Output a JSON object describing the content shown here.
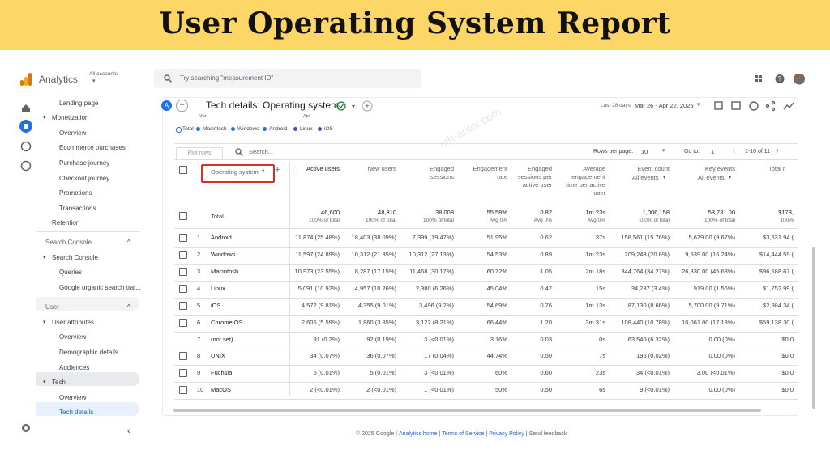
{
  "banner": {
    "title": "User Operating System Report"
  },
  "header": {
    "brand": "Analytics",
    "account": "All accounts",
    "search": "Try searching \"measurement ID\""
  },
  "sidebar": {
    "items": [
      "Landing page",
      "Monetization",
      "Overview",
      "Ecommerce purchases",
      "Purchase journey",
      "Checkout journey",
      "Promotions",
      "Transactions",
      "Retention",
      "Search Console",
      "Search Console",
      "Queries",
      "Google organic search traf...",
      "User",
      "User attributes",
      "Overview",
      "Demographic details",
      "Audiences",
      "Tech",
      "Overview",
      "Tech details"
    ]
  },
  "toolbar": {
    "avatar": "A",
    "title": "Tech details: Operating system",
    "date_label": "Last 28 days",
    "date_range": "Mar 26 - Apr 22, 2025"
  },
  "chart_axis": [
    "Mar",
    "Apr"
  ],
  "legend": [
    "Total",
    "Macintosh",
    "Windows",
    "Android",
    "Linux",
    "iOS"
  ],
  "controls": {
    "plot_rows": "Plot rows",
    "search": "Search...",
    "rows_per_page": "Rows per page:",
    "rows_value": "10",
    "go_to": "Go to:",
    "page": "1",
    "range": "1-10 of 11"
  },
  "watermark": "mh-antor.com",
  "table": {
    "columns": [
      {
        "label": "Operating system"
      },
      {
        "label": "Active users"
      },
      {
        "label": "New users"
      },
      {
        "label": "Engaged sessions"
      },
      {
        "label": "Engagement rate"
      },
      {
        "label": "Engaged sessions per active user"
      },
      {
        "label": "Average engagement time per active user"
      },
      {
        "label": "Event count",
        "sub": "All events"
      },
      {
        "label": "Key events",
        "sub": "All events"
      },
      {
        "label": "Total r"
      }
    ],
    "total": {
      "label": "Total",
      "values": [
        "46,600",
        "48,310",
        "38,008",
        "55.58%",
        "0.82",
        "1m 23s",
        "1,006,158",
        "58,731.00",
        "$178,"
      ],
      "subs": [
        "100% of total",
        "100% of total",
        "100% of total",
        "Avg 0%",
        "Avg 0%",
        "Avg 0%",
        "100% of total",
        "100% of total",
        "100%"
      ]
    },
    "rows": [
      [
        "1",
        "Android",
        "11,874 (25.48%)",
        "18,403 (38.09%)",
        "7,399 (19.47%)",
        "51.95%",
        "0.62",
        "37s",
        "158,561 (15.76%)",
        "5,679.00 (9.67%)",
        "$3,631.94 ("
      ],
      [
        "2",
        "Windows",
        "11,597 (24.89%)",
        "10,312 (21.35%)",
        "10,312 (27.13%)",
        "54.53%",
        "0.89",
        "1m 23s",
        "209,243 (20.8%)",
        "9,539.00 (16.24%)",
        "$14,444.59 ("
      ],
      [
        "3",
        "Macintosh",
        "10,973 (23.55%)",
        "8,287 (17.15%)",
        "11,468 (30.17%)",
        "60.72%",
        "1.05",
        "2m 18s",
        "344,764 (34.27%)",
        "26,830.00 (45.68%)",
        "$96,588.67 ("
      ],
      [
        "4",
        "Linux",
        "5,091 (10.92%)",
        "4,957 (10.26%)",
        "2,380 (6.26%)",
        "45.04%",
        "0.47",
        "15s",
        "34,237 (3.4%)",
        "919.00 (1.56%)",
        "$1,752.99 ("
      ],
      [
        "5",
        "iOS",
        "4,572 (9.81%)",
        "4,355 (9.01%)",
        "3,496 (9.2%)",
        "54.69%",
        "0.76",
        "1m 13s",
        "87,130 (8.66%)",
        "5,700.00 (9.71%)",
        "$2,984.34 ("
      ],
      [
        "6",
        "Chrome OS",
        "2,605 (5.59%)",
        "1,860 (3.85%)",
        "3,122 (8.21%)",
        "66.44%",
        "1.20",
        "3m 31s",
        "108,440 (10.78%)",
        "10,061.00 (17.13%)",
        "$59,138.30 ("
      ],
      [
        "7",
        "(not set)",
        "91 (0.2%)",
        "92 (0.19%)",
        "3 (<0.01%)",
        "3.16%",
        "0.03",
        "0s",
        "63,540 (6.32%)",
        "0.00 (0%)",
        "$0.0"
      ],
      [
        "8",
        "UNIX",
        "34 (0.07%)",
        "36 (0.07%)",
        "17 (0.04%)",
        "44.74%",
        "0.50",
        "7s",
        "196 (0.02%)",
        "0.00 (0%)",
        "$0.0"
      ],
      [
        "9",
        "Fuchsia",
        "5 (0.01%)",
        "5 (0.01%)",
        "3 (<0.01%)",
        "60%",
        "0.60",
        "23s",
        "34 (<0.01%)",
        "3.00 (<0.01%)",
        "$0.0"
      ],
      [
        "10",
        "MacOS",
        "2 (<0.01%)",
        "2 (<0.01%)",
        "1 (<0.01%)",
        "50%",
        "0.50",
        "6s",
        "9 (<0.01%)",
        "0.00 (0%)",
        "$0.0"
      ]
    ]
  },
  "footer": {
    "copyright": "© 2025 Google |",
    "links": [
      "Analytics home",
      "|",
      "Terms of Service",
      "|",
      "Privacy Policy",
      "|",
      "Send feedback"
    ]
  }
}
